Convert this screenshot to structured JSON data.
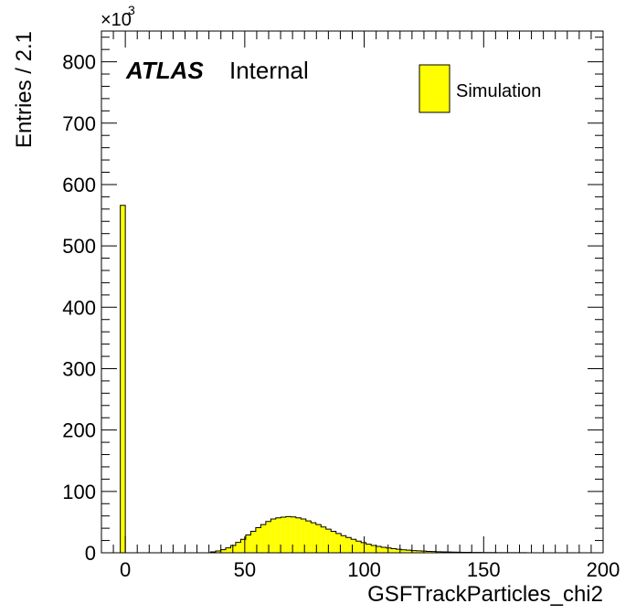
{
  "chart_data": {
    "type": "bar",
    "title": "",
    "xlabel": "GSFTrackParticles_chi2",
    "ylabel": "Entries / 2.1",
    "xlim": [
      -10,
      200
    ],
    "ylim": [
      0,
      850000
    ],
    "y_multiplier_label": "×10",
    "y_multiplier_exponent": "3",
    "x_ticks": [
      0,
      50,
      100,
      150,
      200
    ],
    "x_tick_labels": [
      "0",
      "50",
      "100",
      "150",
      "200"
    ],
    "y_ticks": [
      0,
      100000,
      200000,
      300000,
      400000,
      500000,
      600000,
      700000,
      800000
    ],
    "y_tick_labels": [
      "0",
      "100",
      "200",
      "300",
      "400",
      "500",
      "600",
      "700",
      "800"
    ],
    "bin_width": 2.1,
    "bin_start": -2.1,
    "series": [
      {
        "name": "Simulation",
        "color": "#ffff00",
        "values": [
          566000,
          0,
          0,
          0,
          0,
          0,
          0,
          0,
          0,
          0,
          0,
          0,
          0,
          0,
          0,
          0,
          0,
          0,
          1500,
          3000,
          5000,
          8000,
          12000,
          17000,
          22000,
          29000,
          35000,
          41000,
          46000,
          51000,
          55000,
          57000,
          58000,
          59000,
          58500,
          57000,
          55000,
          52000,
          49000,
          46000,
          42000,
          38500,
          35000,
          31500,
          28000,
          25000,
          22000,
          19000,
          16500,
          14000,
          12000,
          10500,
          9000,
          7800,
          6700,
          5700,
          4900,
          4200,
          3600,
          3100,
          2700,
          2300,
          2000,
          1700,
          1500,
          1300,
          1100,
          950,
          800,
          700,
          600,
          500,
          420,
          360,
          300,
          250,
          210,
          180,
          150,
          120,
          100
        ]
      }
    ]
  },
  "labels": {
    "atlas": "ATLAS",
    "internal": "Internal"
  },
  "legend": {
    "entries": [
      "Simulation"
    ],
    "position": "top-right"
  },
  "colors": {
    "fill": "#ffff00",
    "line": "#000000"
  }
}
